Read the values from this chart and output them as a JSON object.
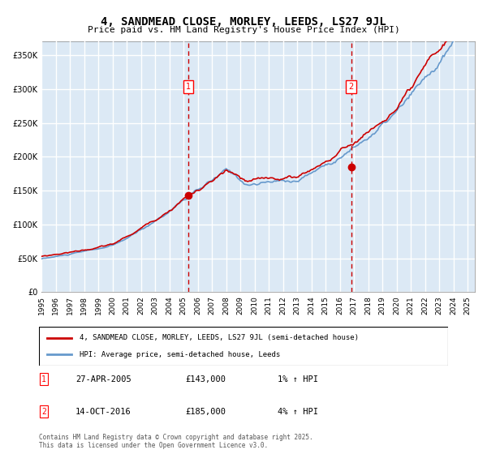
{
  "title": "4, SANDMEAD CLOSE, MORLEY, LEEDS, LS27 9JL",
  "subtitle": "Price paid vs. HM Land Registry's House Price Index (HPI)",
  "legend_property": "4, SANDMEAD CLOSE, MORLEY, LEEDS, LS27 9JL (semi-detached house)",
  "legend_hpi": "HPI: Average price, semi-detached house, Leeds",
  "sale1_label": "1",
  "sale1_date": "27-APR-2005",
  "sale1_price": "£143,000",
  "sale1_hpi": "1% ↑ HPI",
  "sale1_year": 2005.32,
  "sale1_value": 143000,
  "sale2_label": "2",
  "sale2_date": "14-OCT-2016",
  "sale2_price": "£185,000",
  "sale2_hpi": "4% ↑ HPI",
  "sale2_year": 2016.79,
  "sale2_value": 185000,
  "footnote": "Contains HM Land Registry data © Crown copyright and database right 2025.\nThis data is licensed under the Open Government Licence v3.0.",
  "background_color": "#ffffff",
  "plot_bg_color": "#dce9f5",
  "shade_color": "#dce9f5",
  "grid_color": "#ffffff",
  "red_color": "#cc0000",
  "blue_color": "#6699cc",
  "ylim": [
    0,
    370000
  ],
  "xlim_start": 1995,
  "xlim_end": 2025.5
}
